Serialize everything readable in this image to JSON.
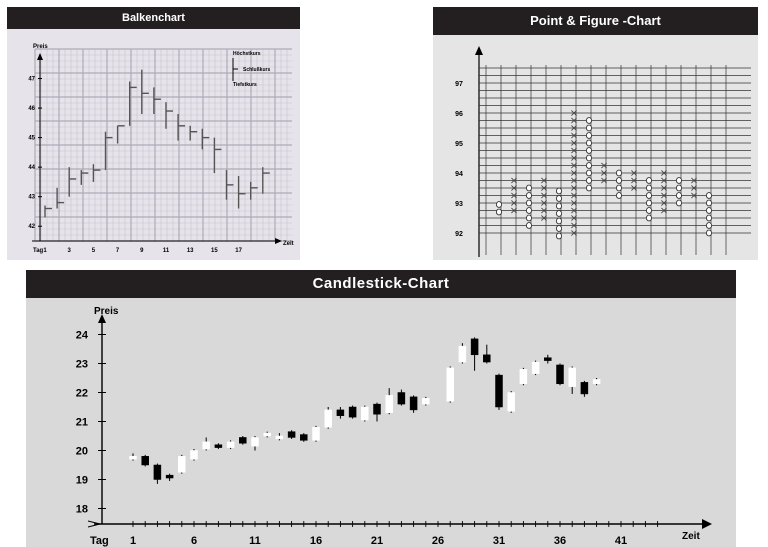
{
  "chart_data": [
    {
      "type": "bar",
      "title": "Balkenchart",
      "ylabel": "Preis",
      "xlabel": "Zeit",
      "x_prefix": "Tag",
      "legend": [
        "Höchstkurs",
        "Schlußkurs",
        "Tiefstkurs"
      ],
      "x_ticks": [
        "1",
        "3",
        "5",
        "7",
        "9",
        "11",
        "13",
        "15",
        "17"
      ],
      "y_ticks": [
        "42",
        "43",
        "44",
        "45",
        "46",
        "47"
      ],
      "ylim": [
        41.5,
        48
      ],
      "xlim": [
        0,
        19
      ],
      "bars": [
        {
          "day": 1,
          "high": 42.7,
          "low": 42.3,
          "close": 42.6
        },
        {
          "day": 2,
          "high": 43.3,
          "low": 42.6,
          "close": 42.8
        },
        {
          "day": 3,
          "high": 44.0,
          "low": 43.0,
          "close": 43.6
        },
        {
          "day": 4,
          "high": 43.9,
          "low": 43.4,
          "close": 43.8
        },
        {
          "day": 5,
          "high": 44.1,
          "low": 43.5,
          "close": 43.9
        },
        {
          "day": 6,
          "high": 45.2,
          "low": 43.9,
          "close": 45.0
        },
        {
          "day": 7,
          "high": 45.4,
          "low": 44.8,
          "close": 45.4
        },
        {
          "day": 8,
          "high": 46.9,
          "low": 45.4,
          "close": 46.7
        },
        {
          "day": 9,
          "high": 47.3,
          "low": 45.8,
          "close": 46.5
        },
        {
          "day": 10,
          "high": 46.7,
          "low": 45.8,
          "close": 46.3
        },
        {
          "day": 11,
          "high": 46.2,
          "low": 45.3,
          "close": 45.9
        },
        {
          "day": 12,
          "high": 45.8,
          "low": 44.9,
          "close": 45.4
        },
        {
          "day": 13,
          "high": 45.4,
          "low": 44.9,
          "close": 45.2
        },
        {
          "day": 14,
          "high": 45.3,
          "low": 44.6,
          "close": 45.0
        },
        {
          "day": 15,
          "high": 45.0,
          "low": 43.8,
          "close": 44.6
        },
        {
          "day": 16,
          "high": 43.9,
          "low": 42.9,
          "close": 43.4
        },
        {
          "day": 17,
          "high": 43.7,
          "low": 42.6,
          "close": 43.1
        },
        {
          "day": 18,
          "high": 43.5,
          "low": 42.9,
          "close": 43.3
        },
        {
          "day": 19,
          "high": 44.0,
          "low": 43.1,
          "close": 43.8
        }
      ]
    },
    {
      "type": "scatter",
      "title": "Point & Figure -Chart",
      "y_ticks": [
        "92",
        "93",
        "94",
        "95",
        "96",
        "97"
      ],
      "ylim": [
        91.6,
        97.6
      ],
      "box_size": 0.25,
      "columns": [
        {
          "symbol": "O",
          "low": 92.7,
          "high": 93.0
        },
        {
          "symbol": "X",
          "low": 92.75,
          "high": 93.75
        },
        {
          "symbol": "O",
          "low": 92.25,
          "high": 93.5
        },
        {
          "symbol": "X",
          "low": 92.5,
          "high": 93.75
        },
        {
          "symbol": "O",
          "low": 91.9,
          "high": 93.5
        },
        {
          "symbol": "X",
          "low": 92.0,
          "high": 96.0
        },
        {
          "symbol": "O",
          "low": 93.5,
          "high": 95.75
        },
        {
          "symbol": "X",
          "low": 93.75,
          "high": 94.25
        },
        {
          "symbol": "O",
          "low": 93.25,
          "high": 94.0
        },
        {
          "symbol": "X",
          "low": 93.5,
          "high": 94.0
        },
        {
          "symbol": "O",
          "low": 92.5,
          "high": 93.75
        },
        {
          "symbol": "X",
          "low": 92.75,
          "high": 94.0
        },
        {
          "symbol": "O",
          "low": 93.0,
          "high": 93.75
        },
        {
          "symbol": "X",
          "low": 93.25,
          "high": 93.75
        },
        {
          "symbol": "O",
          "low": 92.0,
          "high": 93.25
        }
      ]
    },
    {
      "type": "candlestick",
      "title": "Candlestick-Chart",
      "ylabel": "Preis",
      "xlabel": "Zeit",
      "x_prefix": "Tag",
      "x_ticks": [
        "1",
        "6",
        "11",
        "16",
        "21",
        "26",
        "31",
        "36",
        "41"
      ],
      "y_ticks": [
        "18",
        "19",
        "20",
        "21",
        "22",
        "23",
        "24"
      ],
      "ylim": [
        17.5,
        24.5
      ],
      "xlim": [
        -1,
        46
      ],
      "candles": [
        {
          "day": 0,
          "open": 19.7,
          "close": 19.8,
          "high": 19.9,
          "low": 19.65
        },
        {
          "day": 1,
          "open": 19.8,
          "close": 19.5,
          "high": 19.85,
          "low": 19.45
        },
        {
          "day": 2,
          "open": 19.5,
          "close": 19.0,
          "high": 19.55,
          "low": 18.85
        },
        {
          "day": 3,
          "open": 19.15,
          "close": 19.05,
          "high": 19.2,
          "low": 18.95
        },
        {
          "day": 4,
          "open": 19.25,
          "close": 19.8,
          "high": 19.85,
          "low": 19.2
        },
        {
          "day": 5,
          "open": 19.7,
          "close": 20.0,
          "high": 20.05,
          "low": 19.65
        },
        {
          "day": 6,
          "open": 20.05,
          "close": 20.3,
          "high": 20.45,
          "low": 20.0
        },
        {
          "day": 7,
          "open": 20.2,
          "close": 20.1,
          "high": 20.25,
          "low": 20.05
        },
        {
          "day": 8,
          "open": 20.1,
          "close": 20.3,
          "high": 20.35,
          "low": 20.05
        },
        {
          "day": 9,
          "open": 20.45,
          "close": 20.25,
          "high": 20.5,
          "low": 20.2
        },
        {
          "day": 10,
          "open": 20.15,
          "close": 20.45,
          "high": 20.5,
          "low": 20.0
        },
        {
          "day": 11,
          "open": 20.5,
          "close": 20.6,
          "high": 20.65,
          "low": 20.45
        },
        {
          "day": 12,
          "open": 20.4,
          "close": 20.5,
          "high": 20.6,
          "low": 20.35
        },
        {
          "day": 13,
          "open": 20.65,
          "close": 20.45,
          "high": 20.7,
          "low": 20.4
        },
        {
          "day": 14,
          "open": 20.55,
          "close": 20.35,
          "high": 20.6,
          "low": 20.3
        },
        {
          "day": 15,
          "open": 20.35,
          "close": 20.8,
          "high": 20.85,
          "low": 20.3
        },
        {
          "day": 16,
          "open": 20.8,
          "close": 21.4,
          "high": 21.5,
          "low": 20.75
        },
        {
          "day": 17,
          "open": 21.4,
          "close": 21.2,
          "high": 21.5,
          "low": 21.1
        },
        {
          "day": 18,
          "open": 21.5,
          "close": 21.15,
          "high": 21.55,
          "low": 21.1
        },
        {
          "day": 19,
          "open": 21.05,
          "close": 21.5,
          "high": 21.55,
          "low": 21.0
        },
        {
          "day": 20,
          "open": 21.6,
          "close": 21.25,
          "high": 21.65,
          "low": 21.0
        },
        {
          "day": 21,
          "open": 21.3,
          "close": 21.9,
          "high": 22.15,
          "low": 21.25
        },
        {
          "day": 22,
          "open": 22.0,
          "close": 21.6,
          "high": 22.1,
          "low": 21.55
        },
        {
          "day": 23,
          "open": 21.85,
          "close": 21.4,
          "high": 21.9,
          "low": 21.3
        },
        {
          "day": 24,
          "open": 21.6,
          "close": 21.8,
          "high": 21.85,
          "low": 21.55
        },
        {
          "day": 26,
          "open": 21.7,
          "close": 22.85,
          "high": 22.9,
          "low": 21.65
        },
        {
          "day": 27,
          "open": 23.05,
          "close": 23.6,
          "high": 23.7,
          "low": 23.0
        },
        {
          "day": 28,
          "open": 23.85,
          "close": 23.3,
          "high": 23.9,
          "low": 22.75
        },
        {
          "day": 29,
          "open": 23.3,
          "close": 23.05,
          "high": 23.65,
          "low": 23.0
        },
        {
          "day": 30,
          "open": 22.6,
          "close": 21.5,
          "high": 22.65,
          "low": 21.4
        },
        {
          "day": 31,
          "open": 21.35,
          "close": 22.0,
          "high": 22.05,
          "low": 21.3
        },
        {
          "day": 32,
          "open": 22.3,
          "close": 22.8,
          "high": 22.85,
          "low": 22.25
        },
        {
          "day": 33,
          "open": 22.65,
          "close": 23.05,
          "high": 23.1,
          "low": 22.6
        },
        {
          "day": 34,
          "open": 23.2,
          "close": 23.1,
          "high": 23.3,
          "low": 23.0
        },
        {
          "day": 35,
          "open": 22.95,
          "close": 22.3,
          "high": 23.0,
          "low": 22.25
        },
        {
          "day": 36,
          "open": 22.2,
          "close": 22.85,
          "high": 22.9,
          "low": 21.95
        },
        {
          "day": 37,
          "open": 22.35,
          "close": 21.95,
          "high": 22.4,
          "low": 21.85
        },
        {
          "day": 38,
          "open": 22.3,
          "close": 22.45,
          "high": 22.5,
          "low": 22.25
        }
      ]
    }
  ]
}
